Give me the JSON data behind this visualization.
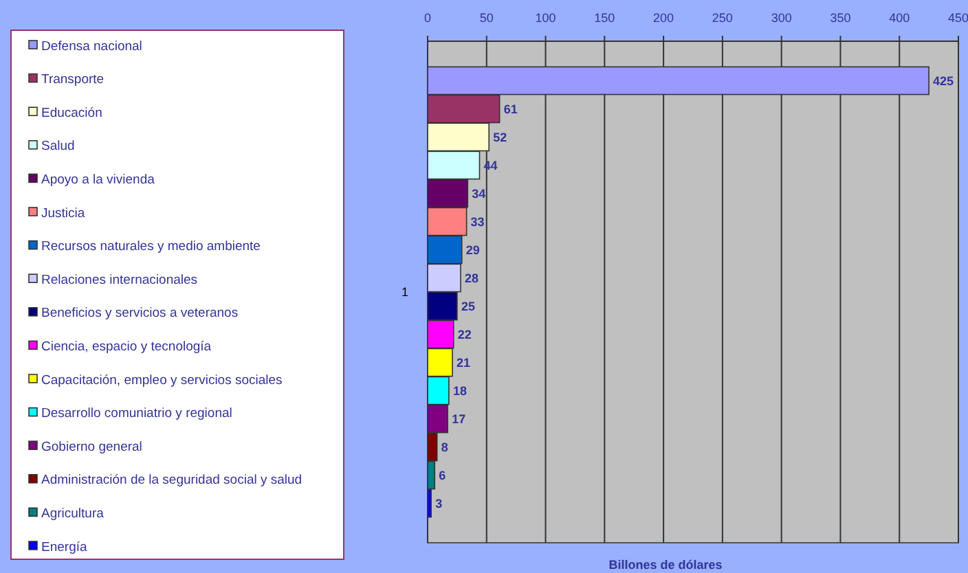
{
  "chart_data": {
    "type": "bar",
    "orientation": "horizontal",
    "xlabel": "Billones de dólares",
    "categories": [
      "1"
    ],
    "xlim": [
      0,
      450
    ],
    "xticks": [
      0,
      50,
      100,
      150,
      200,
      250,
      300,
      350,
      400,
      450
    ],
    "grid": "x",
    "legend": "left",
    "data_labels": true,
    "series": [
      {
        "name": "Defensa nacional",
        "color": "#9999ff",
        "values": [
          425
        ]
      },
      {
        "name": "Transporte",
        "color": "#993366",
        "values": [
          61
        ]
      },
      {
        "name": "Educación",
        "color": "#ffffcc",
        "values": [
          52
        ]
      },
      {
        "name": "Salud",
        "color": "#ccffff",
        "values": [
          44
        ]
      },
      {
        "name": "Apoyo a la vivienda",
        "color": "#660066",
        "values": [
          34
        ]
      },
      {
        "name": "Justicia",
        "color": "#ff8080",
        "values": [
          33
        ]
      },
      {
        "name": "Recursos naturales y medio ambiente",
        "color": "#0066cc",
        "values": [
          29
        ]
      },
      {
        "name": "Relaciones internacionales",
        "color": "#ccccff",
        "values": [
          28
        ]
      },
      {
        "name": "Beneficios y servicios a veteranos",
        "color": "#000080",
        "values": [
          25
        ]
      },
      {
        "name": "Ciencia, espacio y tecnología",
        "color": "#ff00ff",
        "values": [
          22
        ]
      },
      {
        "name": "Capacitación, empleo y servicios sociales",
        "color": "#ffff00",
        "values": [
          21
        ]
      },
      {
        "name": "Desarrollo comuniatrio y regional",
        "color": "#00ffff",
        "values": [
          18
        ]
      },
      {
        "name": "Gobierno general",
        "color": "#800080",
        "values": [
          17
        ]
      },
      {
        "name": "Administración de la seguridad social y salud",
        "color": "#800000",
        "values": [
          8
        ]
      },
      {
        "name": "Agricultura",
        "color": "#008080",
        "values": [
          6
        ]
      },
      {
        "name": "Energía",
        "color": "#0000ff",
        "values": [
          3
        ]
      }
    ]
  }
}
